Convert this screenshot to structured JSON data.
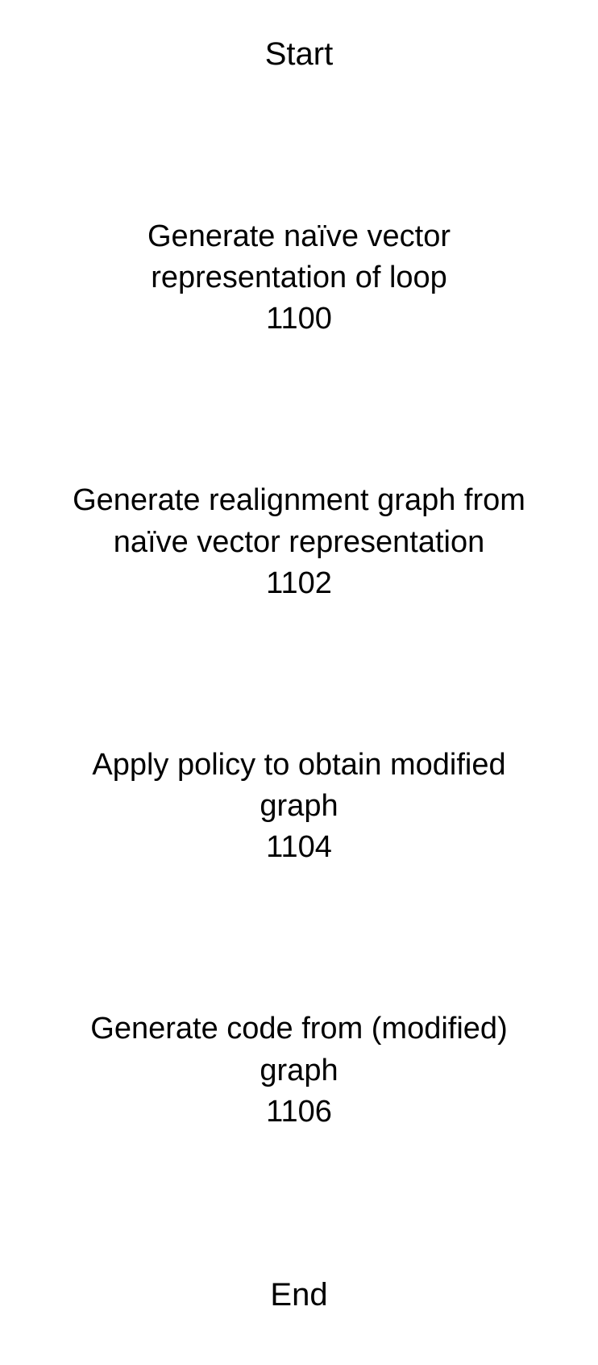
{
  "flowchart": {
    "type": "flowchart",
    "background_color": "#ffffff",
    "text_color": "#000000",
    "font_family": "Arial",
    "terminal_fontsize": 40,
    "step_fontsize": 38,
    "start_label": "Start",
    "end_label": "End",
    "steps": [
      {
        "text": "Generate naïve vector representation of loop",
        "number": "1100"
      },
      {
        "text": "Generate realignment graph from naïve vector representation",
        "number": "1102"
      },
      {
        "text": "Apply policy to obtain modified graph",
        "number": "1104"
      },
      {
        "text": "Generate code from (modified) graph",
        "number": "1106"
      }
    ]
  }
}
